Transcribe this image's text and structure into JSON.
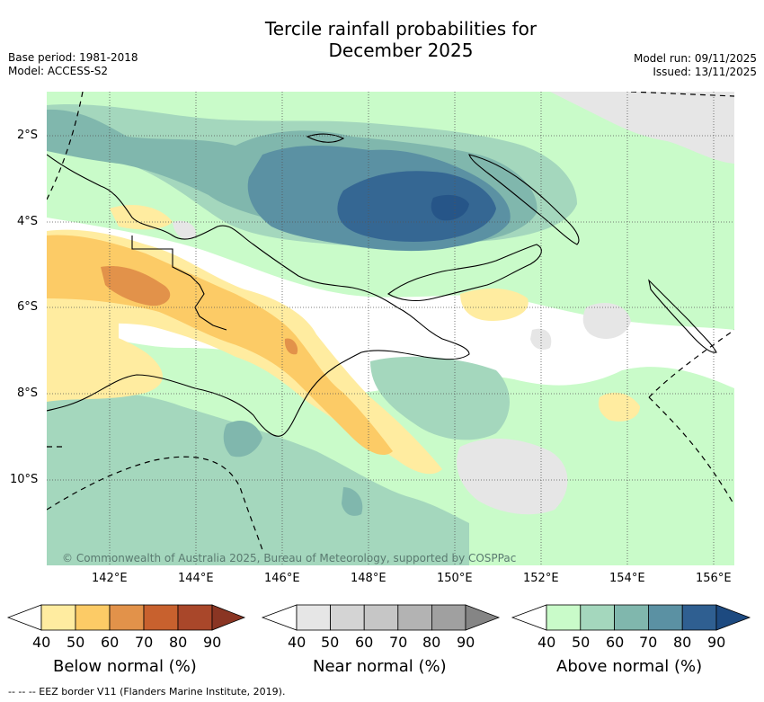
{
  "title_line1": "Tercile rainfall probabilities for",
  "title_line2": "December 2025",
  "meta_left": {
    "base_period": "Base period: 1981-2018",
    "model": "Model: ACCESS-S2"
  },
  "meta_right": {
    "model_run": "Model run: 09/11/2025",
    "issued": "Issued: 13/11/2025"
  },
  "lat_ticks": [
    "2°S",
    "4°S",
    "6°S",
    "8°S",
    "10°S"
  ],
  "lon_ticks": [
    "142°E",
    "144°E",
    "146°E",
    "148°E",
    "150°E",
    "152°E",
    "154°E",
    "156°E"
  ],
  "copyright": "© Commonwealth of Australia 2025, Bureau of Meteorology, supported by COSPPac",
  "colorbars": [
    {
      "label": "Below normal (%)",
      "values": [
        "40",
        "50",
        "60",
        "70",
        "80",
        "90"
      ],
      "colors": [
        "#ffffff",
        "#ffeca0",
        "#fccb66",
        "#e2924a",
        "#c8612e",
        "#a9472a",
        "#8a3523"
      ]
    },
    {
      "label": "Near normal (%)",
      "values": [
        "40",
        "50",
        "60",
        "70",
        "80",
        "90"
      ],
      "colors": [
        "#ffffff",
        "#e6e6e6",
        "#d4d4d4",
        "#c6c6c6",
        "#b3b3b3",
        "#a0a0a0",
        "#858585"
      ]
    },
    {
      "label": "Above normal (%)",
      "values": [
        "40",
        "50",
        "60",
        "70",
        "80",
        "90"
      ],
      "colors": [
        "#ffffff",
        "#c9fbc9",
        "#a4d7bd",
        "#80b7ad",
        "#5b91a3",
        "#2f5f91",
        "#1d4a80"
      ]
    }
  ],
  "eez_note": "--  --  -- EEZ border V11 (Flanders Marine Institute, 2019)."
}
